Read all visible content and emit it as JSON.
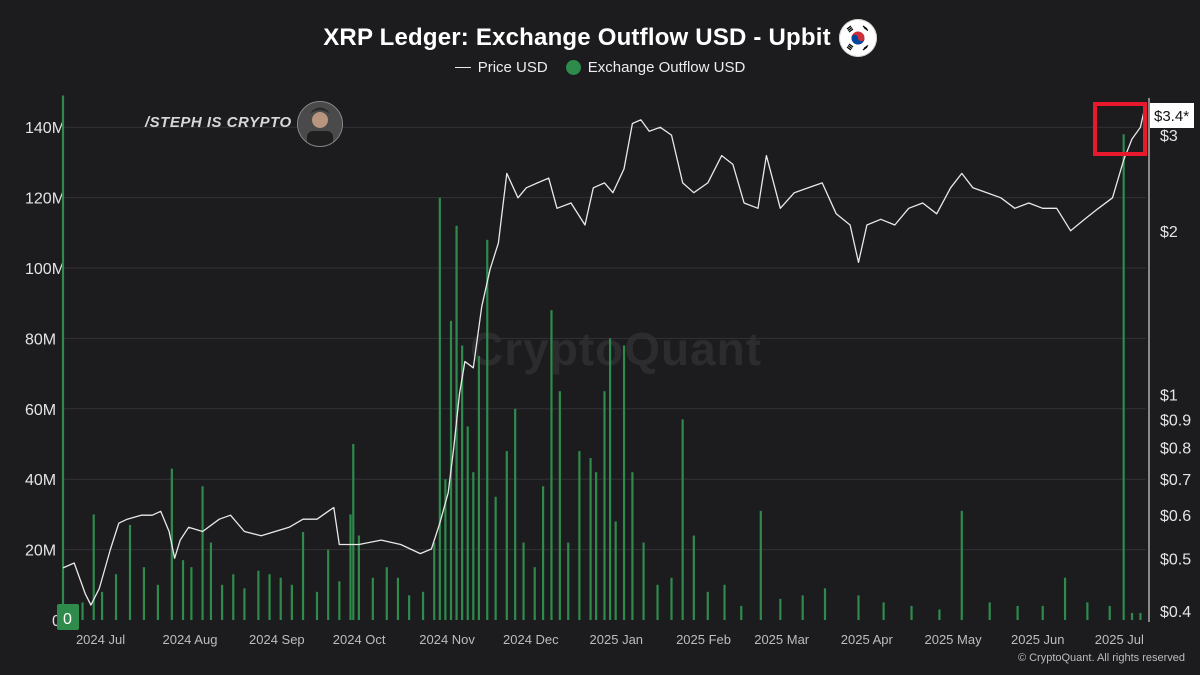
{
  "chart_data": {
    "type": "bar",
    "title": "XRP Ledger: Exchange Outflow USD - Upbit",
    "legend": [
      "Price USD",
      "Exchange Outflow USD"
    ],
    "legend_placement": "top-center",
    "grid": true,
    "x_tick_labels": [
      "2024 Jul",
      "2024 Aug",
      "2024 Sep",
      "2024 Oct",
      "2024 Nov",
      "2024 Dec",
      "2025 Jan",
      "2025 Feb",
      "2025 Mar",
      "2025 Apr",
      "2025 May",
      "2025 Jun",
      "2025 Jul"
    ],
    "x_range": [
      "2024-06-26",
      "2025-07-19"
    ],
    "left_axis": {
      "ticks": [
        0,
        20000000,
        40000000,
        60000000,
        80000000,
        100000000,
        120000000,
        140000000
      ],
      "tick_labels": [
        "0",
        "20M",
        "40M",
        "60M",
        "80M",
        "100M",
        "120M",
        "140M"
      ],
      "range": [
        0,
        150000000
      ]
    },
    "right_axis": {
      "scale": "log",
      "ticks": [
        0.4,
        0.5,
        0.6,
        0.7,
        0.8,
        0.9,
        1,
        2,
        3
      ],
      "tick_labels": [
        "$0.4",
        "$0.5",
        "$0.6",
        "$0.7",
        "$0.8",
        "$0.9",
        "$1",
        "$2",
        "$3"
      ],
      "range": [
        0.385,
        3.6
      ],
      "current_label": "$3.4*",
      "left_zero_badge": "0"
    },
    "series": [
      {
        "name": "Exchange Outflow USD",
        "color": "#2e8b4c",
        "type": "bar",
        "points": [
          [
            "2024-06-26",
            149000000
          ],
          [
            "2024-07-03",
            5000000
          ],
          [
            "2024-07-07",
            30000000
          ],
          [
            "2024-07-10",
            8000000
          ],
          [
            "2024-07-15",
            13000000
          ],
          [
            "2024-07-20",
            27000000
          ],
          [
            "2024-07-25",
            15000000
          ],
          [
            "2024-07-30",
            10000000
          ],
          [
            "2024-08-04",
            43000000
          ],
          [
            "2024-08-08",
            17000000
          ],
          [
            "2024-08-11",
            15000000
          ],
          [
            "2024-08-15",
            38000000
          ],
          [
            "2024-08-18",
            22000000
          ],
          [
            "2024-08-22",
            10000000
          ],
          [
            "2024-08-26",
            13000000
          ],
          [
            "2024-08-30",
            9000000
          ],
          [
            "2024-09-04",
            14000000
          ],
          [
            "2024-09-08",
            13000000
          ],
          [
            "2024-09-12",
            12000000
          ],
          [
            "2024-09-16",
            10000000
          ],
          [
            "2024-09-20",
            25000000
          ],
          [
            "2024-09-25",
            8000000
          ],
          [
            "2024-09-29",
            20000000
          ],
          [
            "2024-10-03",
            11000000
          ],
          [
            "2024-10-07",
            30000000
          ],
          [
            "2024-10-08",
            50000000
          ],
          [
            "2024-10-10",
            24000000
          ],
          [
            "2024-10-15",
            12000000
          ],
          [
            "2024-10-20",
            15000000
          ],
          [
            "2024-10-24",
            12000000
          ],
          [
            "2024-10-28",
            7000000
          ],
          [
            "2024-11-02",
            8000000
          ],
          [
            "2024-11-06",
            22000000
          ],
          [
            "2024-11-08",
            120000000
          ],
          [
            "2024-11-10",
            40000000
          ],
          [
            "2024-11-12",
            85000000
          ],
          [
            "2024-11-14",
            112000000
          ],
          [
            "2024-11-16",
            78000000
          ],
          [
            "2024-11-18",
            55000000
          ],
          [
            "2024-11-20",
            42000000
          ],
          [
            "2024-11-22",
            75000000
          ],
          [
            "2024-11-25",
            108000000
          ],
          [
            "2024-11-28",
            35000000
          ],
          [
            "2024-12-02",
            48000000
          ],
          [
            "2024-12-05",
            60000000
          ],
          [
            "2024-12-08",
            22000000
          ],
          [
            "2024-12-12",
            15000000
          ],
          [
            "2024-12-15",
            38000000
          ],
          [
            "2024-12-18",
            88000000
          ],
          [
            "2024-12-21",
            65000000
          ],
          [
            "2024-12-24",
            22000000
          ],
          [
            "2024-12-28",
            48000000
          ],
          [
            "2025-01-01",
            46000000
          ],
          [
            "2025-01-03",
            42000000
          ],
          [
            "2025-01-06",
            65000000
          ],
          [
            "2025-01-08",
            80000000
          ],
          [
            "2025-01-10",
            28000000
          ],
          [
            "2025-01-13",
            78000000
          ],
          [
            "2025-01-16",
            42000000
          ],
          [
            "2025-01-20",
            22000000
          ],
          [
            "2025-01-25",
            10000000
          ],
          [
            "2025-01-30",
            12000000
          ],
          [
            "2025-02-03",
            57000000
          ],
          [
            "2025-02-07",
            24000000
          ],
          [
            "2025-02-12",
            8000000
          ],
          [
            "2025-02-18",
            10000000
          ],
          [
            "2025-02-24",
            4000000
          ],
          [
            "2025-03-03",
            31000000
          ],
          [
            "2025-03-10",
            6000000
          ],
          [
            "2025-03-18",
            7000000
          ],
          [
            "2025-03-26",
            9000000
          ],
          [
            "2025-04-07",
            7000000
          ],
          [
            "2025-04-16",
            5000000
          ],
          [
            "2025-04-26",
            4000000
          ],
          [
            "2025-05-06",
            3000000
          ],
          [
            "2025-05-14",
            31000000
          ],
          [
            "2025-05-24",
            5000000
          ],
          [
            "2025-06-03",
            4000000
          ],
          [
            "2025-06-12",
            4000000
          ],
          [
            "2025-06-20",
            12000000
          ],
          [
            "2025-06-28",
            5000000
          ],
          [
            "2025-07-06",
            4000000
          ],
          [
            "2025-07-11",
            138000000
          ],
          [
            "2025-07-14",
            2000000
          ],
          [
            "2025-07-17",
            2000000
          ]
        ]
      },
      {
        "name": "Price USD",
        "color": "#e8e8e8",
        "type": "line",
        "axis": "right",
        "points": [
          [
            "2024-06-26",
            0.48
          ],
          [
            "2024-06-30",
            0.49
          ],
          [
            "2024-07-04",
            0.43
          ],
          [
            "2024-07-06",
            0.41
          ],
          [
            "2024-07-09",
            0.44
          ],
          [
            "2024-07-13",
            0.52
          ],
          [
            "2024-07-16",
            0.58
          ],
          [
            "2024-07-19",
            0.59
          ],
          [
            "2024-07-24",
            0.6
          ],
          [
            "2024-07-28",
            0.6
          ],
          [
            "2024-07-31",
            0.61
          ],
          [
            "2024-08-03",
            0.56
          ],
          [
            "2024-08-05",
            0.5
          ],
          [
            "2024-08-07",
            0.54
          ],
          [
            "2024-08-10",
            0.57
          ],
          [
            "2024-08-15",
            0.56
          ],
          [
            "2024-08-21",
            0.59
          ],
          [
            "2024-08-25",
            0.6
          ],
          [
            "2024-08-30",
            0.56
          ],
          [
            "2024-09-05",
            0.55
          ],
          [
            "2024-09-10",
            0.56
          ],
          [
            "2024-09-15",
            0.57
          ],
          [
            "2024-09-20",
            0.59
          ],
          [
            "2024-09-25",
            0.59
          ],
          [
            "2024-09-29",
            0.61
          ],
          [
            "2024-10-01",
            0.62
          ],
          [
            "2024-10-03",
            0.53
          ],
          [
            "2024-10-10",
            0.53
          ],
          [
            "2024-10-18",
            0.54
          ],
          [
            "2024-10-25",
            0.53
          ],
          [
            "2024-11-01",
            0.51
          ],
          [
            "2024-11-05",
            0.52
          ],
          [
            "2024-11-08",
            0.58
          ],
          [
            "2024-11-11",
            0.66
          ],
          [
            "2024-11-13",
            0.8
          ],
          [
            "2024-11-15",
            1.0
          ],
          [
            "2024-11-17",
            1.15
          ],
          [
            "2024-11-20",
            1.12
          ],
          [
            "2024-11-23",
            1.45
          ],
          [
            "2024-11-26",
            1.7
          ],
          [
            "2024-11-29",
            1.9
          ],
          [
            "2024-12-02",
            2.55
          ],
          [
            "2024-12-06",
            2.3
          ],
          [
            "2024-12-09",
            2.4
          ],
          [
            "2024-12-13",
            2.45
          ],
          [
            "2024-12-17",
            2.5
          ],
          [
            "2024-12-20",
            2.2
          ],
          [
            "2024-12-25",
            2.25
          ],
          [
            "2024-12-30",
            2.05
          ],
          [
            "2025-01-02",
            2.4
          ],
          [
            "2025-01-06",
            2.45
          ],
          [
            "2025-01-09",
            2.35
          ],
          [
            "2025-01-13",
            2.6
          ],
          [
            "2025-01-16",
            3.15
          ],
          [
            "2025-01-19",
            3.2
          ],
          [
            "2025-01-22",
            3.05
          ],
          [
            "2025-01-26",
            3.1
          ],
          [
            "2025-01-30",
            3.0
          ],
          [
            "2025-02-03",
            2.45
          ],
          [
            "2025-02-07",
            2.35
          ],
          [
            "2025-02-12",
            2.45
          ],
          [
            "2025-02-17",
            2.75
          ],
          [
            "2025-02-21",
            2.65
          ],
          [
            "2025-02-25",
            2.25
          ],
          [
            "2025-03-02",
            2.2
          ],
          [
            "2025-03-05",
            2.75
          ],
          [
            "2025-03-10",
            2.2
          ],
          [
            "2025-03-15",
            2.35
          ],
          [
            "2025-03-20",
            2.4
          ],
          [
            "2025-03-25",
            2.45
          ],
          [
            "2025-03-30",
            2.15
          ],
          [
            "2025-04-04",
            2.05
          ],
          [
            "2025-04-07",
            1.75
          ],
          [
            "2025-04-10",
            2.05
          ],
          [
            "2025-04-15",
            2.1
          ],
          [
            "2025-04-20",
            2.05
          ],
          [
            "2025-04-25",
            2.2
          ],
          [
            "2025-04-30",
            2.25
          ],
          [
            "2025-05-05",
            2.15
          ],
          [
            "2025-05-10",
            2.4
          ],
          [
            "2025-05-14",
            2.55
          ],
          [
            "2025-05-18",
            2.4
          ],
          [
            "2025-05-23",
            2.35
          ],
          [
            "2025-05-28",
            2.3
          ],
          [
            "2025-06-02",
            2.2
          ],
          [
            "2025-06-07",
            2.25
          ],
          [
            "2025-06-12",
            2.2
          ],
          [
            "2025-06-17",
            2.2
          ],
          [
            "2025-06-22",
            2.0
          ],
          [
            "2025-06-27",
            2.1
          ],
          [
            "2025-07-02",
            2.2
          ],
          [
            "2025-07-07",
            2.3
          ],
          [
            "2025-07-11",
            2.7
          ],
          [
            "2025-07-14",
            2.95
          ],
          [
            "2025-07-17",
            3.1
          ],
          [
            "2025-07-19",
            3.45
          ]
        ]
      }
    ]
  },
  "watermark": {
    "handle": "/STEPH IS CRYPTO",
    "brand": "CryptoQuant"
  },
  "footer": {
    "copyright": "© CryptoQuant. All rights reserved"
  },
  "highlight_box_color": "#e8192c",
  "flag_icon": "south-korea-flag-icon"
}
